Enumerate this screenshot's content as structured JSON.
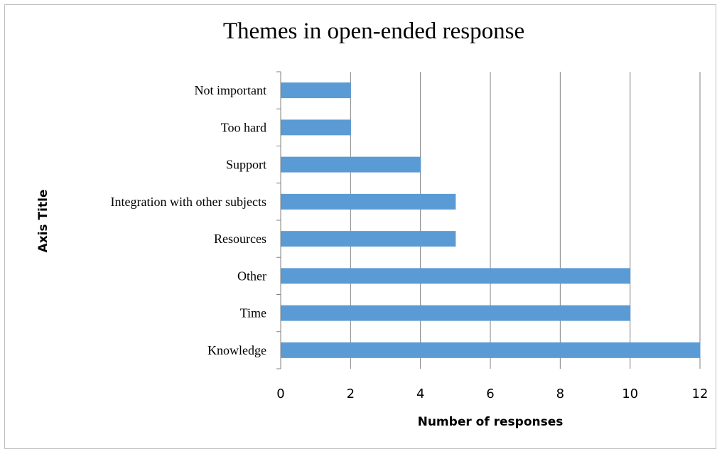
{
  "chart_data": {
    "type": "bar",
    "orientation": "horizontal",
    "title": "Themes in open-ended response",
    "xlabel": "Number of responses",
    "ylabel": "Axis Title",
    "categories": [
      "Knowledge",
      "Time",
      "Other",
      "Resources",
      "Integration with other subjects",
      "Support",
      "Too hard",
      "Not important"
    ],
    "values": [
      12,
      10,
      10,
      5,
      5,
      4,
      2,
      2
    ],
    "xlim": [
      0,
      12
    ],
    "xticks": [
      0,
      2,
      4,
      6,
      8,
      10,
      12
    ],
    "grid": "vertical",
    "legend": "none",
    "bar_color": "#5b9bd5",
    "grid_color": "#808080",
    "axis_color": "#808080"
  }
}
